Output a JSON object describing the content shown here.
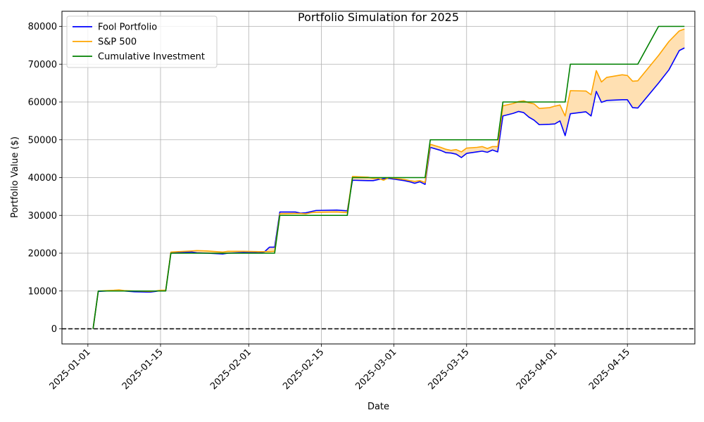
{
  "chart_data": {
    "type": "line",
    "title": "Portfolio Simulation for 2025",
    "xlabel": "Date",
    "ylabel": "Portfolio Value ($)",
    "xlim": [
      "2024-12-27",
      "2025-04-28"
    ],
    "ylim": [
      -4000,
      84000
    ],
    "xticks": [
      "2025-01-01",
      "2025-01-15",
      "2025-02-01",
      "2025-02-15",
      "2025-03-01",
      "2025-03-15",
      "2025-04-01",
      "2025-04-15"
    ],
    "yticks": [
      0,
      10000,
      20000,
      30000,
      40000,
      50000,
      60000,
      70000,
      80000
    ],
    "grid": true,
    "legend_position": "top-left",
    "reference_line": {
      "y": 0,
      "color": "#000000",
      "style": "dashed"
    },
    "fill_between": {
      "series_a": "Fool Portfolio",
      "series_b": "S&P 500",
      "color": "#ffe0b2"
    },
    "series": [
      {
        "name": "Fool Portfolio",
        "color": "#0000ff",
        "points": [
          [
            "2025-01-02",
            0
          ],
          [
            "2025-01-03",
            9900
          ],
          [
            "2025-01-06",
            10100
          ],
          [
            "2025-01-07",
            10200
          ],
          [
            "2025-01-08",
            10000
          ],
          [
            "2025-01-10",
            9800
          ],
          [
            "2025-01-13",
            9700
          ],
          [
            "2025-01-14",
            9900
          ],
          [
            "2025-01-15",
            10100
          ],
          [
            "2025-01-16",
            10100
          ],
          [
            "2025-01-17",
            20200
          ],
          [
            "2025-01-21",
            20300
          ],
          [
            "2025-01-22",
            20100
          ],
          [
            "2025-01-24",
            20000
          ],
          [
            "2025-01-27",
            19800
          ],
          [
            "2025-01-28",
            20000
          ],
          [
            "2025-01-31",
            20200
          ],
          [
            "2025-02-03",
            20100
          ],
          [
            "2025-02-04",
            20300
          ],
          [
            "2025-02-05",
            21600
          ],
          [
            "2025-02-06",
            21600
          ],
          [
            "2025-02-07",
            30900
          ],
          [
            "2025-02-10",
            30900
          ],
          [
            "2025-02-11",
            30600
          ],
          [
            "2025-02-12",
            30700
          ],
          [
            "2025-02-13",
            31000
          ],
          [
            "2025-02-14",
            31300
          ],
          [
            "2025-02-18",
            31400
          ],
          [
            "2025-02-20",
            31200
          ],
          [
            "2025-02-21",
            39300
          ],
          [
            "2025-02-24",
            39200
          ],
          [
            "2025-02-25",
            39200
          ],
          [
            "2025-02-26",
            39500
          ],
          [
            "2025-02-27",
            39700
          ],
          [
            "2025-02-28",
            39800
          ],
          [
            "2025-03-03",
            39200
          ],
          [
            "2025-03-04",
            38900
          ],
          [
            "2025-03-05",
            38500
          ],
          [
            "2025-03-06",
            38900
          ],
          [
            "2025-03-07",
            38200
          ],
          [
            "2025-03-08",
            48000
          ],
          [
            "2025-03-10",
            47200
          ],
          [
            "2025-03-11",
            46600
          ],
          [
            "2025-03-12",
            46500
          ],
          [
            "2025-03-13",
            46200
          ],
          [
            "2025-03-14",
            45300
          ],
          [
            "2025-03-15",
            46400
          ],
          [
            "2025-03-17",
            46800
          ],
          [
            "2025-03-18",
            47000
          ],
          [
            "2025-03-19",
            46700
          ],
          [
            "2025-03-20",
            47300
          ],
          [
            "2025-03-21",
            46800
          ],
          [
            "2025-03-22",
            56300
          ],
          [
            "2025-03-24",
            57000
          ],
          [
            "2025-03-25",
            57500
          ],
          [
            "2025-03-26",
            57200
          ],
          [
            "2025-03-27",
            56000
          ],
          [
            "2025-03-28",
            55200
          ],
          [
            "2025-03-29",
            54000
          ],
          [
            "2025-03-31",
            54100
          ],
          [
            "2025-04-01",
            54200
          ],
          [
            "2025-04-02",
            55000
          ],
          [
            "2025-04-03",
            51100
          ],
          [
            "2025-04-04",
            56900
          ],
          [
            "2025-04-07",
            57400
          ],
          [
            "2025-04-08",
            56300
          ],
          [
            "2025-04-09",
            62800
          ],
          [
            "2025-04-10",
            59900
          ],
          [
            "2025-04-11",
            60400
          ],
          [
            "2025-04-14",
            60600
          ],
          [
            "2025-04-15",
            60600
          ],
          [
            "2025-04-16",
            58500
          ],
          [
            "2025-04-17",
            58400
          ],
          [
            "2025-04-21",
            65000
          ],
          [
            "2025-04-23",
            68500
          ],
          [
            "2025-04-25",
            73600
          ],
          [
            "2025-04-26",
            74300
          ]
        ]
      },
      {
        "name": "S&P 500",
        "color": "#ffa500",
        "points": [
          [
            "2025-01-02",
            0
          ],
          [
            "2025-01-03",
            10000
          ],
          [
            "2025-01-06",
            10200
          ],
          [
            "2025-01-07",
            10300
          ],
          [
            "2025-01-08",
            10100
          ],
          [
            "2025-01-10",
            10000
          ],
          [
            "2025-01-13",
            9900
          ],
          [
            "2025-01-14",
            10000
          ],
          [
            "2025-01-15",
            10200
          ],
          [
            "2025-01-16",
            10200
          ],
          [
            "2025-01-17",
            20300
          ],
          [
            "2025-01-21",
            20600
          ],
          [
            "2025-01-22",
            20700
          ],
          [
            "2025-01-24",
            20600
          ],
          [
            "2025-01-27",
            20300
          ],
          [
            "2025-01-28",
            20500
          ],
          [
            "2025-01-31",
            20500
          ],
          [
            "2025-02-03",
            20400
          ],
          [
            "2025-02-04",
            20400
          ],
          [
            "2025-02-05",
            20400
          ],
          [
            "2025-02-06",
            20500
          ],
          [
            "2025-02-07",
            30400
          ],
          [
            "2025-02-10",
            30500
          ],
          [
            "2025-02-11",
            30500
          ],
          [
            "2025-02-12",
            30400
          ],
          [
            "2025-02-13",
            30700
          ],
          [
            "2025-02-14",
            30800
          ],
          [
            "2025-02-18",
            30900
          ],
          [
            "2025-02-20",
            30700
          ],
          [
            "2025-02-21",
            40300
          ],
          [
            "2025-02-24",
            40100
          ],
          [
            "2025-02-25",
            39800
          ],
          [
            "2025-02-26",
            39800
          ],
          [
            "2025-02-27",
            39300
          ],
          [
            "2025-02-28",
            40000
          ],
          [
            "2025-03-03",
            39500
          ],
          [
            "2025-03-04",
            39200
          ],
          [
            "2025-03-05",
            39000
          ],
          [
            "2025-03-06",
            39200
          ],
          [
            "2025-03-07",
            38700
          ],
          [
            "2025-03-08",
            48800
          ],
          [
            "2025-03-10",
            48000
          ],
          [
            "2025-03-11",
            47500
          ],
          [
            "2025-03-12",
            47200
          ],
          [
            "2025-03-13",
            47400
          ],
          [
            "2025-03-14",
            46800
          ],
          [
            "2025-03-15",
            47800
          ],
          [
            "2025-03-17",
            48000
          ],
          [
            "2025-03-18",
            48200
          ],
          [
            "2025-03-19",
            47700
          ],
          [
            "2025-03-20",
            48200
          ],
          [
            "2025-03-21",
            48200
          ],
          [
            "2025-03-22",
            59000
          ],
          [
            "2025-03-24",
            59600
          ],
          [
            "2025-03-25",
            60100
          ],
          [
            "2025-03-26",
            60300
          ],
          [
            "2025-03-27",
            59800
          ],
          [
            "2025-03-28",
            59500
          ],
          [
            "2025-03-29",
            58300
          ],
          [
            "2025-03-31",
            58500
          ],
          [
            "2025-04-01",
            58900
          ],
          [
            "2025-04-02",
            59200
          ],
          [
            "2025-04-03",
            56300
          ],
          [
            "2025-04-04",
            63000
          ],
          [
            "2025-04-07",
            62900
          ],
          [
            "2025-04-08",
            61900
          ],
          [
            "2025-04-09",
            68300
          ],
          [
            "2025-04-10",
            65300
          ],
          [
            "2025-04-11",
            66500
          ],
          [
            "2025-04-14",
            67200
          ],
          [
            "2025-04-15",
            67000
          ],
          [
            "2025-04-16",
            65500
          ],
          [
            "2025-04-17",
            65600
          ],
          [
            "2025-04-21",
            72300
          ],
          [
            "2025-04-23",
            76000
          ],
          [
            "2025-04-25",
            78800
          ],
          [
            "2025-04-26",
            79300
          ]
        ]
      },
      {
        "name": "Cumulative Investment",
        "color": "#008000",
        "points": [
          [
            "2025-01-02",
            0
          ],
          [
            "2025-01-03",
            10000
          ],
          [
            "2025-01-16",
            10000
          ],
          [
            "2025-01-17",
            20000
          ],
          [
            "2025-02-06",
            20000
          ],
          [
            "2025-02-07",
            30000
          ],
          [
            "2025-02-20",
            30000
          ],
          [
            "2025-02-21",
            40000
          ],
          [
            "2025-03-07",
            40000
          ],
          [
            "2025-03-08",
            50000
          ],
          [
            "2025-03-21",
            50000
          ],
          [
            "2025-03-22",
            60000
          ],
          [
            "2025-04-03",
            60000
          ],
          [
            "2025-04-04",
            70000
          ],
          [
            "2025-04-17",
            70000
          ],
          [
            "2025-04-21",
            80000
          ],
          [
            "2025-04-26",
            80000
          ]
        ]
      }
    ]
  }
}
